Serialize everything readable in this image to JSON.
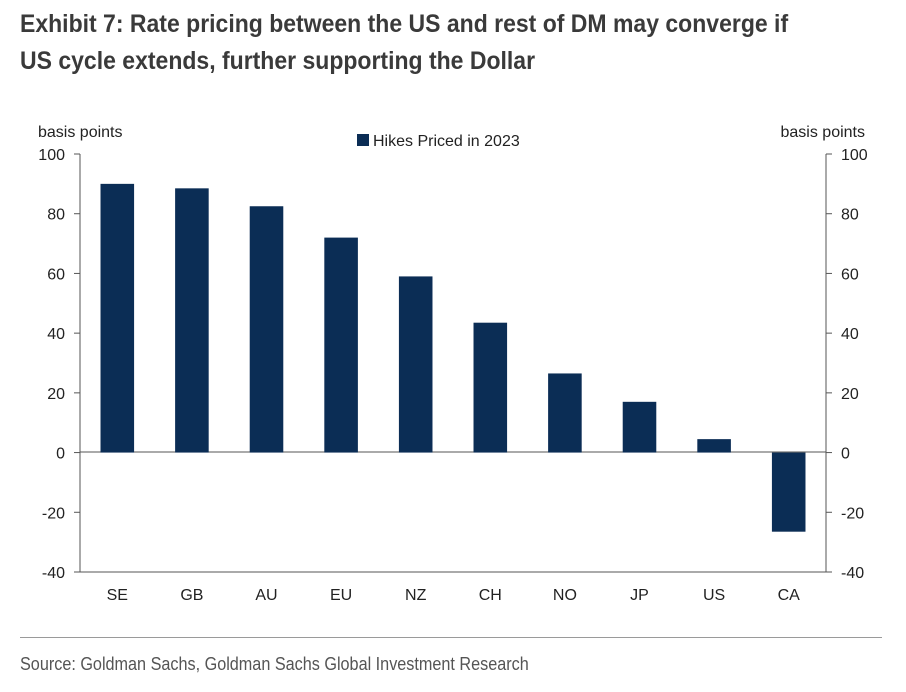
{
  "title": "Exhibit 7: Rate pricing between the US and rest of DM may converge if US cycle extends, further supporting the Dollar",
  "source": "Source: Goldman Sachs, Goldman Sachs Global Investment Research",
  "colors": {
    "bar": "#0b2d55",
    "axis": "#555555",
    "text": "#222222"
  },
  "chart_data": {
    "type": "bar",
    "categories": [
      "SE",
      "GB",
      "AU",
      "EU",
      "NZ",
      "CH",
      "NO",
      "JP",
      "US",
      "CA"
    ],
    "series": [
      {
        "name": "Hikes Priced in 2023",
        "values": [
          90,
          88.5,
          82.5,
          72,
          59,
          43.5,
          26.5,
          17,
          4.5,
          -26.5
        ]
      }
    ],
    "ylabel_left": "basis points",
    "ylabel_right": "basis points",
    "ylim": [
      -40,
      100
    ],
    "yticks": [
      100,
      80,
      60,
      40,
      20,
      0,
      -20,
      -40
    ],
    "grid": false,
    "legend": "top-center"
  }
}
